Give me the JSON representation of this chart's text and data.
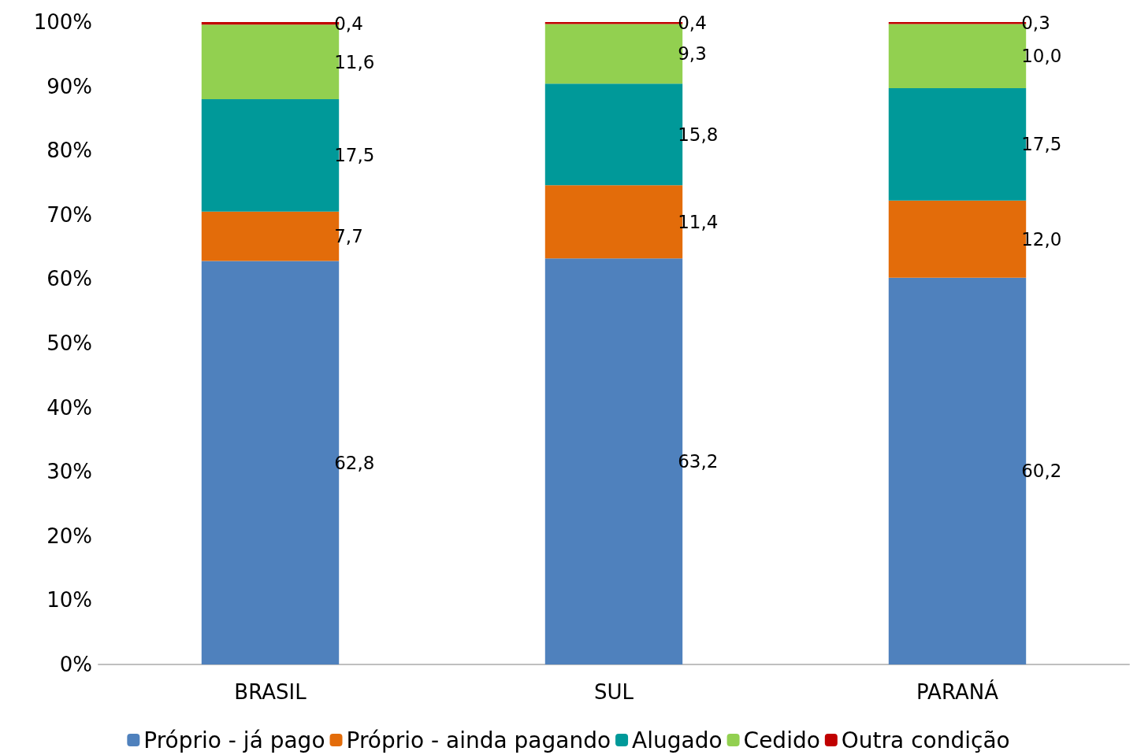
{
  "chart_data": {
    "type": "bar",
    "stacked": true,
    "categories": [
      "BRASIL",
      "SUL",
      "PARANÁ"
    ],
    "series": [
      {
        "name": "Próprio - já pago",
        "color": "#4f81bd",
        "values": [
          62.8,
          63.2,
          60.2
        ],
        "value_labels": [
          "62,8",
          "63,2",
          "60,2"
        ]
      },
      {
        "name": "Próprio - ainda pagando",
        "color": "#e36c0a",
        "values": [
          7.7,
          11.4,
          12.0
        ],
        "value_labels": [
          "7,7",
          "11,4",
          "12,0"
        ]
      },
      {
        "name": "Alugado",
        "color": "#009999",
        "values": [
          17.5,
          15.8,
          17.5
        ],
        "value_labels": [
          "17,5",
          "15,8",
          "17,5"
        ]
      },
      {
        "name": "Cedido",
        "color": "#92d050",
        "values": [
          11.6,
          9.3,
          10.0
        ],
        "value_labels": [
          "11,6",
          "9,3",
          "10,0"
        ]
      },
      {
        "name": "Outra condição",
        "color": "#c00000",
        "values": [
          0.4,
          0.4,
          0.3
        ],
        "value_labels": [
          "0,4",
          "0,4",
          "0,3"
        ]
      }
    ],
    "ylim": [
      0,
      100
    ],
    "yticks": [
      {
        "value": 0,
        "label": "0%"
      },
      {
        "value": 10,
        "label": "10%"
      },
      {
        "value": 20,
        "label": "20%"
      },
      {
        "value": 30,
        "label": "30%"
      },
      {
        "value": 40,
        "label": "40%"
      },
      {
        "value": 50,
        "label": "50%"
      },
      {
        "value": 60,
        "label": "60%"
      },
      {
        "value": 70,
        "label": "70%"
      },
      {
        "value": 80,
        "label": "80%"
      },
      {
        "value": 90,
        "label": "90%"
      },
      {
        "value": 100,
        "label": "100%"
      }
    ],
    "grid": false,
    "legend": "bottom"
  }
}
